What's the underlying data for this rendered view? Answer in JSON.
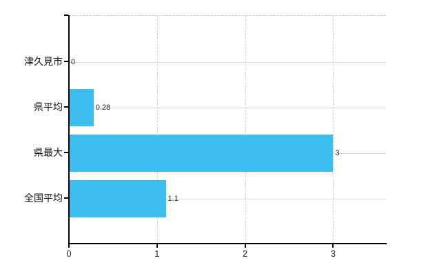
{
  "chart_data": {
    "type": "bar",
    "orientation": "horizontal",
    "title": "",
    "xlabel": "",
    "ylabel": "",
    "categories": [
      "津久見市",
      "県平均",
      "県最大",
      "全国平均"
    ],
    "values": [
      0,
      0.28,
      3,
      1.1
    ],
    "value_labels": [
      "0",
      "0.28",
      "3",
      "1.1"
    ],
    "x_ticks": [
      0,
      1,
      2,
      3
    ],
    "x_tick_labels": [
      "0",
      "1",
      "2",
      "3"
    ],
    "xlim": [
      0,
      3.6
    ],
    "grid": true,
    "legend": false,
    "colors": {
      "bar_fill": "#3bbdef",
      "axis": "#000000",
      "horizontal_gridline": "#d6ded3",
      "vertical_gridline": "#d6ced8",
      "top_border_dashed": "#c6c6c6",
      "label_text": "#222222",
      "background": "#ffffff"
    }
  }
}
